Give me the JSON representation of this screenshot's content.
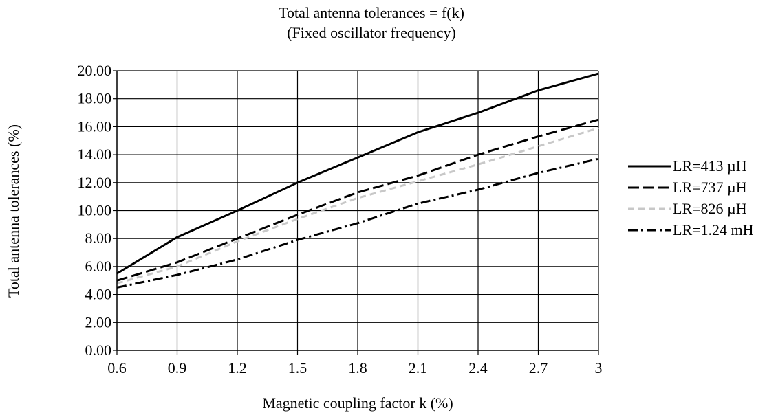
{
  "chart_data": {
    "type": "line",
    "title": "Total antenna tolerances = f(k)",
    "subtitle": "(Fixed oscillator frequency)",
    "xlabel": "Magnetic coupling factor k (%)",
    "ylabel": "Total antenna tolerances (%)",
    "x": [
      0.6,
      0.9,
      1.2,
      1.5,
      1.8,
      2.1,
      2.4,
      2.7,
      3.0
    ],
    "x_tick_labels": [
      "0.6",
      "0.9",
      "1.2",
      "1.5",
      "1.8",
      "2.1",
      "2.4",
      "2.7",
      "3"
    ],
    "ylim": [
      0,
      20
    ],
    "y_ticks": [
      0,
      2,
      4,
      6,
      8,
      10,
      12,
      14,
      16,
      18,
      20
    ],
    "y_tick_labels": [
      "0.00",
      "2.00",
      "4.00",
      "6.00",
      "8.00",
      "10.00",
      "12.00",
      "14.00",
      "16.00",
      "18.00",
      "20.00"
    ],
    "grid": true,
    "legend_position": "right",
    "series": [
      {
        "name": "LR=413 µH",
        "values": [
          5.5,
          8.1,
          10.0,
          12.0,
          13.8,
          15.6,
          17.0,
          18.6,
          19.8
        ],
        "color": "#000000",
        "dash": "solid"
      },
      {
        "name": "LR=737 µH",
        "values": [
          5.0,
          6.3,
          8.0,
          9.7,
          11.3,
          12.5,
          14.0,
          15.3,
          16.5
        ],
        "color": "#000000",
        "dash": "longdash"
      },
      {
        "name": "LR=826 µH",
        "values": [
          4.8,
          6.0,
          7.8,
          9.4,
          10.9,
          12.1,
          13.3,
          14.6,
          15.9
        ],
        "color": "#c8c8c8",
        "dash": "dash"
      },
      {
        "name": "LR=1.24 mH",
        "values": [
          4.5,
          5.4,
          6.5,
          7.9,
          9.1,
          10.5,
          11.5,
          12.7,
          13.7
        ],
        "color": "#000000",
        "dash": "dashdot"
      }
    ]
  }
}
